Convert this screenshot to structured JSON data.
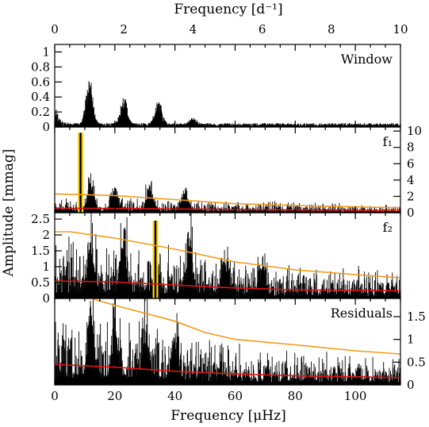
{
  "colors": {
    "noise": "#e11212",
    "threshold": "#f39a19",
    "highlight": "#f7d21a",
    "signal": "#000000"
  },
  "chart_data": {
    "type": "line",
    "xlabel_bottom": "Frequency [μHz]",
    "xlabel_top": "Frequency [d⁻¹]",
    "ylabel": "Amplitude [mmag]",
    "x_bottom_range": [
      0,
      115
    ],
    "x_top_range": [
      0,
      10
    ],
    "x_bottom_ticks": [
      "0",
      "20",
      "40",
      "60",
      "80",
      "100"
    ],
    "x_top_ticks": [
      "0",
      "2",
      "4",
      "6",
      "8",
      "10"
    ],
    "panels": [
      {
        "label": "Window",
        "ylim": [
          0,
          1.1
        ],
        "yticks": [
          "0",
          "0.2",
          "0.4",
          "0.6",
          "0.8",
          "1"
        ],
        "peaks": [
          {
            "x": 11.5,
            "y": 0.65
          },
          {
            "x": 23,
            "y": 0.38
          },
          {
            "x": 34.5,
            "y": 0.33
          },
          {
            "x": 46,
            "y": 0.1
          }
        ]
      },
      {
        "label": "f₁",
        "ylim": [
          0,
          10.5
        ],
        "yticks_right": [
          "0",
          "2",
          "4",
          "6",
          "8",
          "10"
        ],
        "peaks": [
          {
            "x": 8.6,
            "y": 9.8
          },
          {
            "x": 12,
            "y": 4.2
          },
          {
            "x": 20,
            "y": 3.1
          },
          {
            "x": 31.5,
            "y": 3.3
          },
          {
            "x": 43,
            "y": 2.4
          }
        ],
        "noise": [
          {
            "x": 0,
            "y": 0.55
          },
          {
            "x": 30,
            "y": 0.5
          },
          {
            "x": 60,
            "y": 0.4
          },
          {
            "x": 115,
            "y": 0.25
          }
        ],
        "threshold": [
          {
            "x": 0,
            "y": 2.3
          },
          {
            "x": 20,
            "y": 2.1
          },
          {
            "x": 40,
            "y": 1.6
          },
          {
            "x": 60,
            "y": 1.1
          },
          {
            "x": 90,
            "y": 0.8
          },
          {
            "x": 115,
            "y": 0.6
          }
        ]
      },
      {
        "label": "f₂",
        "ylim": [
          0,
          2.7
        ],
        "yticks": [
          "0",
          "0.5",
          "1",
          "1.5",
          "2",
          "2.5"
        ],
        "peaks": [
          {
            "x": 33.5,
            "y": 2.45
          },
          {
            "x": 23,
            "y": 1.78
          },
          {
            "x": 45,
            "y": 1.55
          },
          {
            "x": 57,
            "y": 1.15
          },
          {
            "x": 69,
            "y": 0.95
          },
          {
            "x": 12,
            "y": 1.35
          }
        ],
        "noise": [
          {
            "x": 0,
            "y": 0.55
          },
          {
            "x": 20,
            "y": 0.52
          },
          {
            "x": 40,
            "y": 0.42
          },
          {
            "x": 60,
            "y": 0.33
          },
          {
            "x": 80,
            "y": 0.27
          },
          {
            "x": 115,
            "y": 0.24
          }
        ],
        "threshold": [
          {
            "x": 0,
            "y": 2.1
          },
          {
            "x": 5,
            "y": 2.1
          },
          {
            "x": 20,
            "y": 1.9
          },
          {
            "x": 40,
            "y": 1.55
          },
          {
            "x": 60,
            "y": 1.15
          },
          {
            "x": 80,
            "y": 0.9
          },
          {
            "x": 100,
            "y": 0.75
          },
          {
            "x": 115,
            "y": 0.65
          }
        ]
      },
      {
        "label": "Residuals",
        "ylim": [
          0,
          1.9
        ],
        "yticks_right": [
          "0",
          "0.5",
          "1",
          "1.5"
        ],
        "peaks": [
          {
            "x": 12,
            "y": 1.5
          },
          {
            "x": 20,
            "y": 1.1
          },
          {
            "x": 30,
            "y": 1.15
          },
          {
            "x": 40,
            "y": 0.9
          }
        ],
        "noise": [
          {
            "x": 0,
            "y": 0.45
          },
          {
            "x": 20,
            "y": 0.39
          },
          {
            "x": 40,
            "y": 0.3
          },
          {
            "x": 60,
            "y": 0.24
          },
          {
            "x": 80,
            "y": 0.2
          },
          {
            "x": 115,
            "y": 0.16
          }
        ],
        "threshold": [
          {
            "x": 12,
            "y": 1.9
          },
          {
            "x": 20,
            "y": 1.75
          },
          {
            "x": 40,
            "y": 1.4
          },
          {
            "x": 50,
            "y": 1.15
          },
          {
            "x": 60,
            "y": 1.0
          },
          {
            "x": 80,
            "y": 0.88
          },
          {
            "x": 100,
            "y": 0.75
          },
          {
            "x": 115,
            "y": 0.68
          }
        ]
      }
    ]
  }
}
